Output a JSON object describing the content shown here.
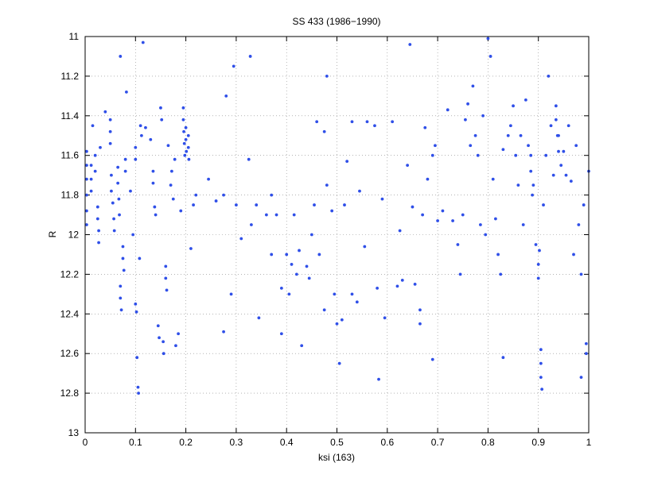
{
  "chart_data": {
    "type": "scatter",
    "title": "SS 433 (1986−1990)",
    "xlabel": "ksi (163)",
    "ylabel": "R",
    "xlim": [
      0,
      1
    ],
    "ylim": [
      11,
      13
    ],
    "y_inverted": true,
    "grid": true,
    "color": "#2f4fe8",
    "xticks": [
      0,
      0.1,
      0.2,
      0.3,
      0.4,
      0.5,
      0.6,
      0.7,
      0.8,
      0.9,
      1
    ],
    "yticks": [
      11,
      11.2,
      11.4,
      11.6,
      11.8,
      12,
      12.2,
      12.4,
      12.6,
      12.8,
      13
    ],
    "x": [
      0.003,
      0.003,
      0.003,
      0.003,
      0.003,
      0.003,
      0.012,
      0.012,
      0.012,
      0.015,
      0.02,
      0.02,
      0.025,
      0.025,
      0.027,
      0.027,
      0.03,
      0.04,
      0.05,
      0.05,
      0.05,
      0.052,
      0.052,
      0.055,
      0.057,
      0.058,
      0.065,
      0.065,
      0.067,
      0.068,
      0.07,
      0.07,
      0.072,
      0.07,
      0.075,
      0.075,
      0.077,
      0.08,
      0.08,
      0.082,
      0.09,
      0.095,
      0.1,
      0.1,
      0.1,
      0.102,
      0.103,
      0.105,
      0.106,
      0.108,
      0.11,
      0.112,
      0.115,
      0.12,
      0.13,
      0.135,
      0.135,
      0.138,
      0.14,
      0.145,
      0.147,
      0.15,
      0.152,
      0.155,
      0.156,
      0.16,
      0.16,
      0.162,
      0.165,
      0.17,
      0.172,
      0.175,
      0.178,
      0.18,
      0.185,
      0.19,
      0.195,
      0.195,
      0.196,
      0.197,
      0.198,
      0.2,
      0.2,
      0.201,
      0.205,
      0.205,
      0.206,
      0.21,
      0.215,
      0.22,
      0.245,
      0.26,
      0.275,
      0.275,
      0.28,
      0.29,
      0.295,
      0.3,
      0.31,
      0.325,
      0.328,
      0.33,
      0.34,
      0.345,
      0.36,
      0.37,
      0.37,
      0.38,
      0.39,
      0.39,
      0.4,
      0.405,
      0.41,
      0.415,
      0.42,
      0.425,
      0.43,
      0.44,
      0.445,
      0.45,
      0.455,
      0.46,
      0.465,
      0.475,
      0.475,
      0.48,
      0.48,
      0.49,
      0.495,
      0.5,
      0.505,
      0.51,
      0.515,
      0.52,
      0.53,
      0.53,
      0.54,
      0.545,
      0.555,
      0.56,
      0.575,
      0.58,
      0.583,
      0.59,
      0.595,
      0.61,
      0.62,
      0.625,
      0.63,
      0.64,
      0.645,
      0.65,
      0.655,
      0.665,
      0.665,
      0.67,
      0.675,
      0.68,
      0.69,
      0.69,
      0.695,
      0.7,
      0.71,
      0.72,
      0.73,
      0.74,
      0.745,
      0.75,
      0.755,
      0.76,
      0.765,
      0.77,
      0.775,
      0.78,
      0.785,
      0.79,
      0.795,
      0.8,
      0.805,
      0.81,
      0.815,
      0.82,
      0.825,
      0.83,
      0.83,
      0.84,
      0.845,
      0.85,
      0.855,
      0.86,
      0.865,
      0.87,
      0.875,
      0.88,
      0.885,
      0.89,
      0.895,
      0.9,
      0.905,
      0.91,
      0.915,
      0.92,
      0.925,
      0.93,
      0.935,
      0.94,
      0.945,
      0.95,
      0.955,
      0.96,
      0.965,
      0.97,
      0.975,
      0.98,
      0.985,
      0.985,
      0.99,
      0.995,
      1.0,
      0.905,
      0.9,
      0.902,
      0.905,
      0.907,
      0.935,
      0.938,
      0.94,
      0.885,
      0.888,
      0.995
    ],
    "values": [
      11.58,
      11.65,
      11.72,
      11.8,
      11.88,
      11.95,
      11.65,
      11.72,
      11.78,
      11.45,
      11.6,
      11.68,
      11.86,
      11.92,
      11.98,
      12.04,
      11.56,
      11.38,
      11.42,
      11.48,
      11.54,
      11.7,
      11.78,
      11.84,
      11.92,
      11.98,
      11.66,
      11.74,
      11.82,
      11.9,
      12.26,
      12.32,
      12.38,
      11.1,
      12.06,
      12.12,
      12.18,
      11.62,
      11.68,
      11.28,
      11.78,
      12.0,
      11.56,
      11.62,
      12.35,
      12.39,
      12.62,
      12.77,
      12.8,
      12.12,
      11.45,
      11.5,
      11.03,
      11.46,
      11.52,
      11.68,
      11.74,
      11.86,
      11.9,
      12.46,
      12.52,
      11.36,
      11.42,
      12.54,
      12.6,
      12.16,
      12.22,
      12.28,
      11.55,
      11.75,
      11.68,
      11.82,
      11.62,
      12.56,
      12.5,
      11.88,
      11.36,
      11.42,
      11.48,
      11.54,
      11.6,
      11.46,
      11.52,
      11.58,
      11.5,
      11.56,
      11.62,
      12.07,
      11.85,
      11.8,
      11.72,
      11.83,
      11.8,
      12.49,
      11.3,
      12.3,
      11.15,
      11.85,
      12.02,
      11.62,
      11.1,
      11.95,
      11.85,
      12.42,
      11.9,
      12.1,
      11.8,
      11.9,
      12.5,
      12.27,
      12.1,
      12.3,
      12.15,
      11.9,
      12.2,
      12.08,
      12.56,
      12.16,
      12.22,
      12.0,
      11.85,
      11.43,
      12.1,
      11.48,
      12.38,
      11.2,
      11.75,
      11.88,
      12.3,
      12.45,
      12.65,
      12.43,
      11.85,
      11.63,
      11.43,
      12.3,
      12.34,
      11.78,
      12.06,
      11.43,
      11.45,
      12.27,
      12.73,
      11.82,
      12.42,
      11.43,
      12.26,
      11.98,
      12.23,
      11.65,
      11.04,
      11.86,
      12.25,
      12.45,
      12.38,
      11.9,
      11.46,
      11.72,
      12.63,
      11.6,
      11.55,
      11.93,
      11.88,
      11.37,
      11.93,
      12.05,
      12.2,
      11.9,
      11.42,
      11.34,
      11.55,
      11.25,
      11.5,
      11.6,
      11.95,
      11.4,
      12.0,
      11.01,
      11.1,
      11.72,
      11.92,
      12.1,
      12.2,
      12.62,
      11.57,
      11.5,
      11.45,
      11.35,
      11.6,
      11.75,
      11.5,
      11.95,
      11.32,
      11.55,
      11.68,
      11.75,
      12.05,
      12.15,
      12.65,
      11.85,
      11.6,
      11.2,
      11.45,
      11.7,
      11.35,
      11.5,
      11.65,
      11.58,
      11.7,
      11.45,
      11.73,
      12.1,
      11.55,
      11.95,
      12.2,
      12.72,
      11.85,
      12.6,
      11.68,
      12.72,
      12.22,
      12.08,
      12.58,
      12.78,
      11.42,
      11.5,
      11.58,
      11.6,
      11.8,
      12.55
    ]
  }
}
